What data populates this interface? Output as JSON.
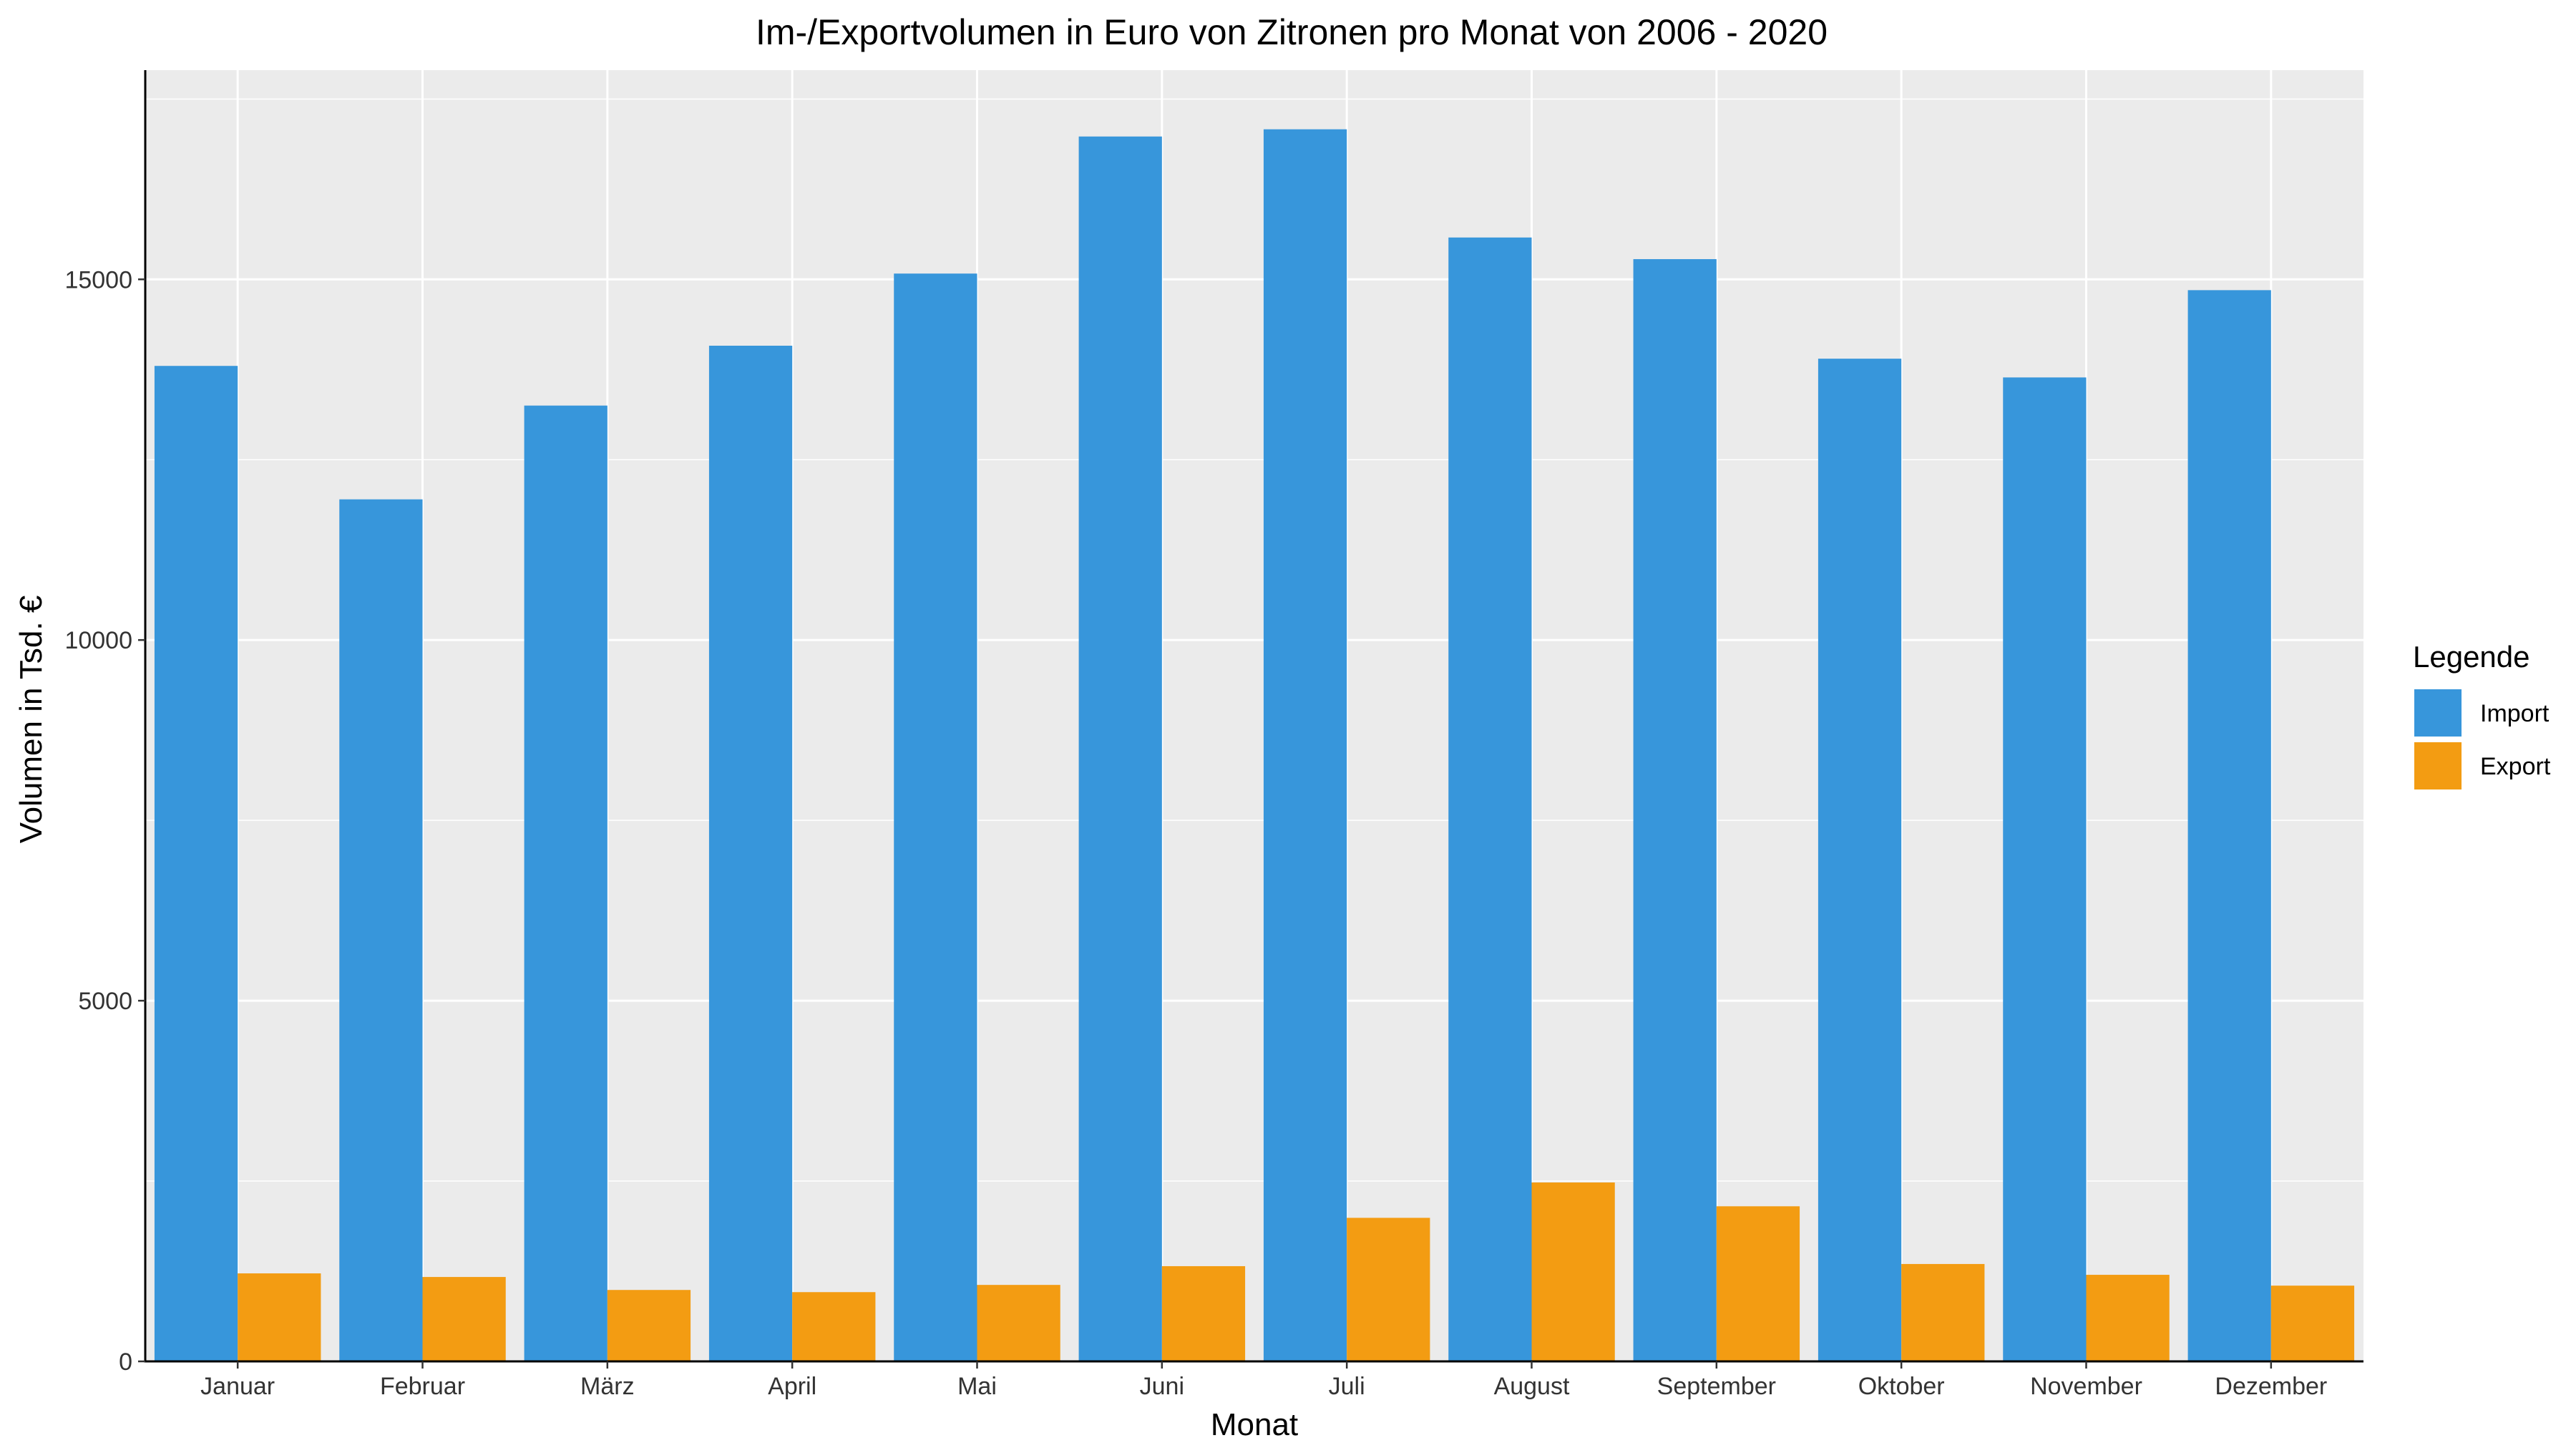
{
  "chart_data": {
    "type": "bar",
    "title": "Im-/Exportvolumen in Euro von Zitronen pro Monat von 2006 - 2020",
    "xlabel": "Monat",
    "ylabel": "Volumen in Tsd. €",
    "categories": [
      "Januar",
      "Februar",
      "März",
      "April",
      "Mai",
      "Juni",
      "Juli",
      "August",
      "September",
      "Oktober",
      "November",
      "Dezember"
    ],
    "series": [
      {
        "name": "Import",
        "color": "#3796db",
        "values": [
          13800,
          11950,
          13250,
          14080,
          15080,
          16980,
          17080,
          15580,
          15280,
          13900,
          13640,
          14850
        ]
      },
      {
        "name": "Export",
        "color": "#f39c12",
        "values": [
          1220,
          1170,
          990,
          960,
          1060,
          1320,
          1990,
          2480,
          2150,
          1350,
          1200,
          1050
        ]
      }
    ],
    "ylim": [
      0,
      17900
    ],
    "yticks": [
      0,
      5000,
      10000,
      15000
    ],
    "ytick_labels": [
      "0",
      "5000",
      "10000",
      "15000"
    ],
    "grid": true,
    "legend": {
      "title": "Legende",
      "placement": "right"
    },
    "panel_background": "#ebebeb",
    "gridline_color": "#ffffff"
  }
}
